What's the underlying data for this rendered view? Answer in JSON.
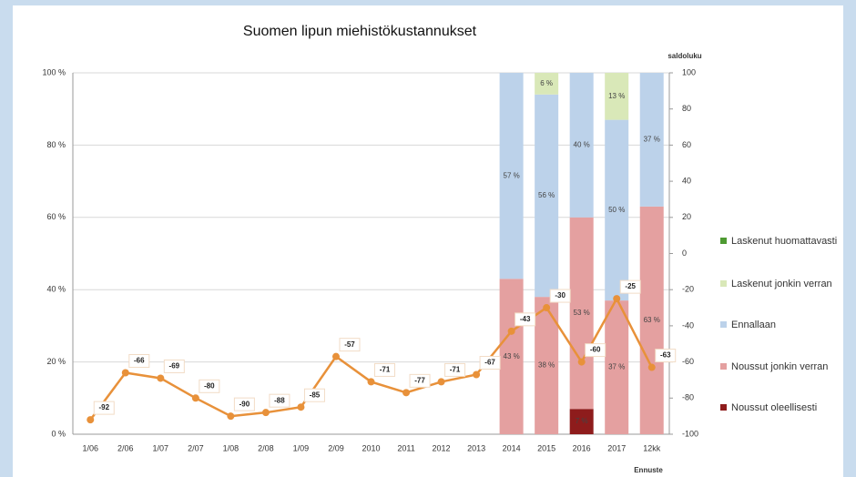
{
  "chart_data": {
    "type": "bar",
    "title": "Suomen lipun miehistökustannukset",
    "y2_label": "saldoluku",
    "annotation": "Ennuste",
    "categories": [
      "1/06",
      "2/06",
      "1/07",
      "2/07",
      "1/08",
      "2/08",
      "1/09",
      "2/09",
      "2010",
      "2011",
      "2012",
      "2013",
      "2014",
      "2015",
      "2016",
      "2017",
      "12kk"
    ],
    "series": [
      {
        "name": "Noussut oleellisesti",
        "color": "#8e1c1c",
        "values": [
          null,
          null,
          null,
          null,
          null,
          null,
          null,
          null,
          null,
          null,
          null,
          null,
          null,
          null,
          7,
          null,
          null
        ],
        "value_labels": [
          null,
          null,
          null,
          null,
          null,
          null,
          null,
          null,
          null,
          null,
          null,
          null,
          null,
          null,
          "7 %",
          null,
          null
        ]
      },
      {
        "name": "Noussut jonkin verran",
        "color": "#e4a0a0",
        "values": [
          null,
          null,
          null,
          null,
          null,
          null,
          null,
          null,
          null,
          null,
          null,
          null,
          43,
          38,
          53,
          37,
          63
        ],
        "value_labels": [
          null,
          null,
          null,
          null,
          null,
          null,
          null,
          null,
          null,
          null,
          null,
          null,
          "43 %",
          "38 %",
          "53 %",
          "37 %",
          "63 %"
        ]
      },
      {
        "name": "Ennallaan",
        "color": "#bcd2ea",
        "values": [
          null,
          null,
          null,
          null,
          null,
          null,
          null,
          null,
          null,
          null,
          null,
          null,
          57,
          56,
          40,
          50,
          37
        ],
        "value_labels": [
          null,
          null,
          null,
          null,
          null,
          null,
          null,
          null,
          null,
          null,
          null,
          null,
          "57 %",
          "56 %",
          "40 %",
          "50 %",
          "37 %"
        ]
      },
      {
        "name": "Laskenut jonkin verran",
        "color": "#d9e8b8",
        "values": [
          null,
          null,
          null,
          null,
          null,
          null,
          null,
          null,
          null,
          null,
          null,
          null,
          null,
          6,
          null,
          13,
          null
        ],
        "value_labels": [
          null,
          null,
          null,
          null,
          null,
          null,
          null,
          null,
          null,
          null,
          null,
          null,
          null,
          "6 %",
          null,
          "13 %",
          null
        ]
      },
      {
        "name": "Laskenut huomattavasti",
        "color": "#4e9a32",
        "values": [
          null,
          null,
          null,
          null,
          null,
          null,
          null,
          null,
          null,
          null,
          null,
          null,
          null,
          null,
          null,
          null,
          null
        ]
      },
      {
        "name": "saldoluku",
        "type": "line",
        "axis": "y2",
        "color": "#e8913a",
        "values": [
          -92,
          -66,
          -69,
          -80,
          -90,
          -88,
          -85,
          -57,
          -71,
          -77,
          -71,
          -67,
          -43,
          -30,
          -60,
          -25,
          -63
        ]
      }
    ],
    "ylim": [
      0,
      100
    ],
    "yticks": [
      {
        "value": 0,
        "label": "0 %"
      },
      {
        "value": 20,
        "label": "20 %"
      },
      {
        "value": 40,
        "label": "40 %"
      },
      {
        "value": 60,
        "label": "60 %"
      },
      {
        "value": 80,
        "label": "80 %"
      },
      {
        "value": 100,
        "label": "100 %"
      }
    ],
    "y2lim": [
      -100,
      100
    ],
    "y2ticks": [
      -100,
      -80,
      -60,
      -40,
      -20,
      0,
      20,
      40,
      60,
      80,
      100
    ],
    "grid": true
  }
}
